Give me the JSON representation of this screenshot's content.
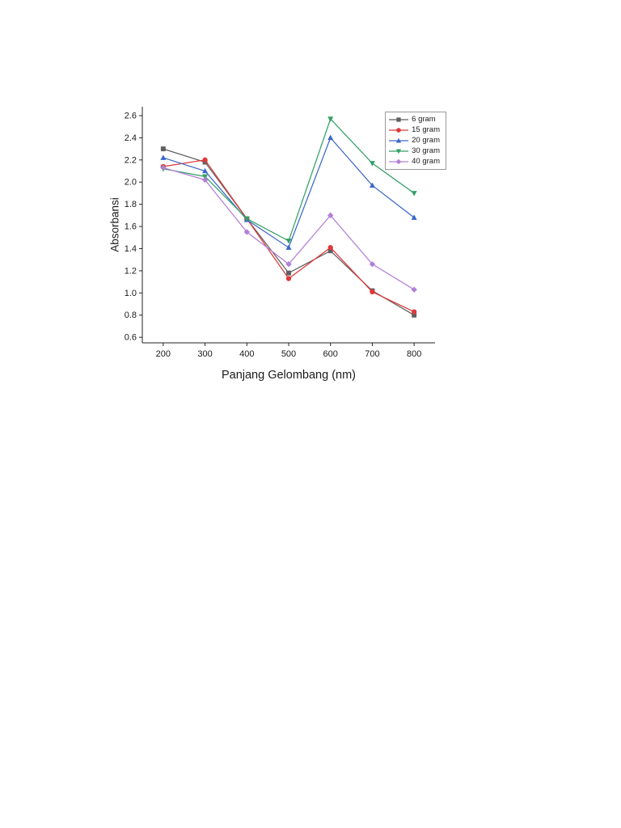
{
  "page": {
    "background": "#ffffff"
  },
  "chart_data": {
    "type": "line",
    "title": "",
    "xlabel": "Panjang Gelombang (nm)",
    "ylabel": "Absorbansi",
    "x": [
      200,
      300,
      400,
      500,
      600,
      700,
      800
    ],
    "xlim": [
      150,
      850
    ],
    "ylim": [
      0.55,
      2.68
    ],
    "xticks": [
      200,
      300,
      400,
      500,
      600,
      700,
      800
    ],
    "yticks": [
      0.6,
      0.8,
      1.0,
      1.2,
      1.4,
      1.6,
      1.8,
      2.0,
      2.2,
      2.4,
      2.6
    ],
    "grid": false,
    "legend_position": "top-right",
    "axis_color": "#222222",
    "series": [
      {
        "name": "6 gram",
        "color": "#5f5f5f",
        "marker": "square",
        "values": [
          2.3,
          2.18,
          1.67,
          1.18,
          1.38,
          1.02,
          0.8
        ]
      },
      {
        "name": "15 gram",
        "color": "#dd3a3a",
        "marker": "circle",
        "values": [
          2.14,
          2.2,
          1.67,
          1.13,
          1.41,
          1.01,
          0.83
        ]
      },
      {
        "name": "20 gram",
        "color": "#3a67c9",
        "marker": "triangle-up",
        "values": [
          2.22,
          2.1,
          1.66,
          1.41,
          2.4,
          1.97,
          1.68
        ]
      },
      {
        "name": "30 gram",
        "color": "#33a066",
        "marker": "triangle-down",
        "values": [
          2.12,
          2.05,
          1.67,
          1.47,
          2.57,
          2.17,
          1.9
        ]
      },
      {
        "name": "40 gram",
        "color": "#b27fd6",
        "marker": "diamond",
        "values": [
          2.13,
          2.02,
          1.55,
          1.26,
          1.7,
          1.26,
          1.03
        ]
      }
    ]
  }
}
